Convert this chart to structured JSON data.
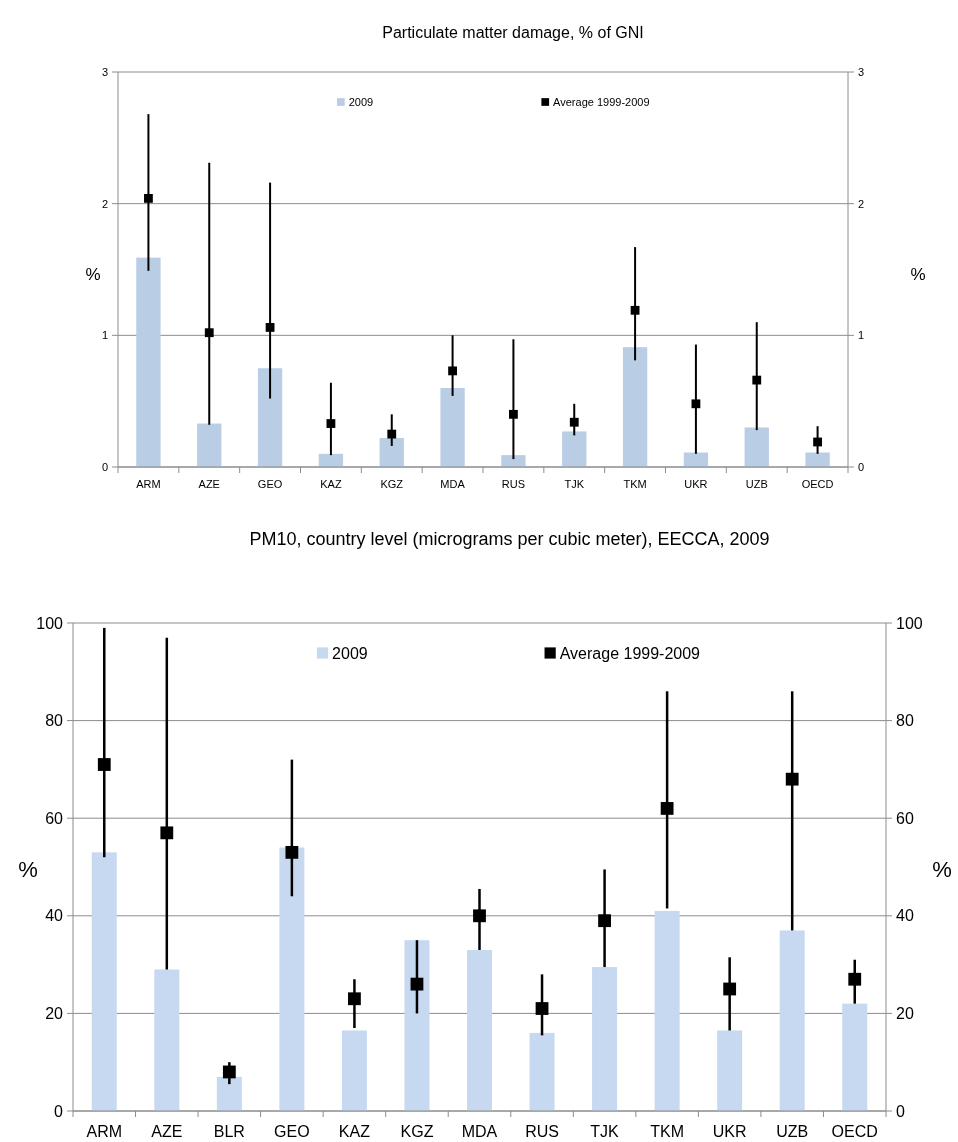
{
  "chart_data": [
    {
      "type": "bar",
      "title": "Particulate matter damage, % of GNI",
      "ylabel": "%",
      "y2label": "%",
      "categories": [
        "ARM",
        "AZE",
        "GEO",
        "KAZ",
        "KGZ",
        "MDA",
        "RUS",
        "TJK",
        "TKM",
        "UKR",
        "UZB",
        "OECD"
      ],
      "series": [
        {
          "name": "2009",
          "color": "#b9cde5",
          "values": [
            1.59,
            0.33,
            0.75,
            0.1,
            0.22,
            0.6,
            0.09,
            0.27,
            0.91,
            0.11,
            0.3,
            0.11
          ]
        },
        {
          "name": "Average 1999-2009",
          "type": "scatter",
          "color": "#000000",
          "values": [
            2.04,
            1.02,
            1.06,
            0.33,
            0.25,
            0.73,
            0.4,
            0.34,
            1.19,
            0.48,
            0.66,
            0.19
          ],
          "errors": [
            [
              1.49,
              2.68
            ],
            [
              0.32,
              2.31
            ],
            [
              0.52,
              2.16
            ],
            [
              0.09,
              0.64
            ],
            [
              0.16,
              0.4
            ],
            [
              0.54,
              1.0
            ],
            [
              0.06,
              0.97
            ],
            [
              0.24,
              0.48
            ],
            [
              0.81,
              1.67
            ],
            [
              0.1,
              0.93
            ],
            [
              0.28,
              1.1
            ],
            [
              0.1,
              0.31
            ]
          ]
        }
      ],
      "ylim": [
        0,
        3
      ],
      "yticks": [
        0,
        1,
        2,
        3
      ],
      "y2lim": [
        0,
        3
      ],
      "y2ticks": [
        0,
        1,
        2,
        3
      ],
      "grid": "y",
      "legend": "top",
      "marker": "square"
    },
    {
      "type": "bar",
      "title": "PM10, country level (micrograms per cubic meter), EECCA, 2009",
      "ylabel": "%",
      "y2label": "%",
      "categories": [
        "ARM",
        "AZE",
        "BLR",
        "GEO",
        "KAZ",
        "KGZ",
        "MDA",
        "RUS",
        "TJK",
        "TKM",
        "UKR",
        "UZB",
        "OECD"
      ],
      "series": [
        {
          "name": "2009",
          "color": "#c6d9f1",
          "values": [
            53,
            29,
            7,
            54,
            16.5,
            35,
            33,
            16,
            29.5,
            41,
            16.5,
            37,
            22
          ]
        },
        {
          "name": "Average 1999-2009",
          "type": "scatter",
          "color": "#000000",
          "values": [
            71,
            57,
            8,
            53,
            23,
            26,
            40,
            21,
            39,
            62,
            25,
            68,
            27
          ],
          "errors": [
            [
              52,
              99
            ],
            [
              29,
              97
            ],
            [
              5.5,
              10
            ],
            [
              44,
              72
            ],
            [
              17,
              27
            ],
            [
              20,
              35
            ],
            [
              33,
              45.5
            ],
            [
              15.5,
              28
            ],
            [
              29.5,
              49.5
            ],
            [
              41.5,
              86
            ],
            [
              16.5,
              31.5
            ],
            [
              37,
              86
            ],
            [
              22,
              31
            ]
          ]
        }
      ],
      "ylim": [
        0,
        100
      ],
      "yticks": [
        0,
        20,
        40,
        60,
        80,
        100
      ],
      "y2lim": [
        0,
        100
      ],
      "y2ticks": [
        0,
        20,
        40,
        60,
        80,
        100
      ],
      "grid": "y",
      "legend": "top",
      "marker": "square"
    }
  ]
}
